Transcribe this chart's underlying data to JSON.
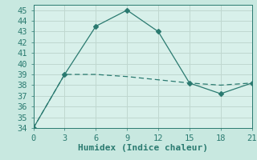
{
  "line1_x": [
    0,
    3,
    6,
    9,
    12,
    15,
    18,
    21
  ],
  "line1_y": [
    34,
    39,
    43.5,
    45,
    43,
    38.2,
    37.2,
    38.2
  ],
  "line2_x": [
    0,
    3,
    6,
    9,
    12,
    15,
    18,
    21
  ],
  "line2_y": [
    34,
    39,
    39,
    38.8,
    38.5,
    38.2,
    38.0,
    38.2
  ],
  "line_color": "#2a7a70",
  "bg_color": "#c8e8e0",
  "plot_bg_color": "#d8f0ea",
  "grid_color": "#c0d8d0",
  "xlabel": "Humidex (Indice chaleur)",
  "xlim": [
    0,
    21
  ],
  "ylim": [
    34,
    45.5
  ],
  "xticks": [
    0,
    3,
    6,
    9,
    12,
    15,
    18,
    21
  ],
  "yticks": [
    34,
    35,
    36,
    37,
    38,
    39,
    40,
    41,
    42,
    43,
    44,
    45
  ],
  "xlabel_fontsize": 8,
  "tick_fontsize": 7.5
}
